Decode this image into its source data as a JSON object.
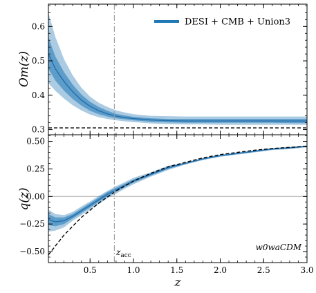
{
  "chart_data": [
    {
      "type": "area",
      "panel": "top",
      "ylabel": "Om(z)",
      "xlim": [
        0.02,
        3.0
      ],
      "ylim": [
        0.285,
        0.665
      ],
      "yticks": [
        0.3,
        0.4,
        0.5,
        0.6
      ],
      "ytick_labels": [
        "0.3",
        "0.4",
        "0.5",
        "0.6"
      ],
      "legend": {
        "label": "DESI + CMB + Union3",
        "placement": "top-right",
        "color": "#1f77b4"
      },
      "series": [
        {
          "name": "DESI + CMB + Union3",
          "x": [
            0.02,
            0.1,
            0.2,
            0.3,
            0.4,
            0.5,
            0.6,
            0.7,
            0.8,
            0.9,
            1.0,
            1.2,
            1.4,
            1.6,
            1.8,
            2.0,
            2.2,
            2.4,
            2.6,
            2.8,
            3.0
          ],
          "median": [
            0.52,
            0.477,
            0.44,
            0.41,
            0.386,
            0.368,
            0.355,
            0.346,
            0.339,
            0.335,
            0.332,
            0.328,
            0.326,
            0.325,
            0.325,
            0.325,
            0.325,
            0.325,
            0.325,
            0.325,
            0.325
          ],
          "band68_low": [
            0.477,
            0.443,
            0.413,
            0.389,
            0.37,
            0.355,
            0.345,
            0.338,
            0.333,
            0.33,
            0.327,
            0.323,
            0.321,
            0.32,
            0.32,
            0.32,
            0.32,
            0.32,
            0.32,
            0.319,
            0.319
          ],
          "band68_high": [
            0.568,
            0.513,
            0.467,
            0.431,
            0.402,
            0.381,
            0.366,
            0.355,
            0.346,
            0.341,
            0.337,
            0.333,
            0.331,
            0.331,
            0.331,
            0.331,
            0.331,
            0.331,
            0.331,
            0.331,
            0.331
          ],
          "band95_low": [
            0.435,
            0.413,
            0.39,
            0.371,
            0.356,
            0.344,
            0.336,
            0.331,
            0.327,
            0.324,
            0.322,
            0.318,
            0.316,
            0.315,
            0.315,
            0.314,
            0.314,
            0.314,
            0.314,
            0.314,
            0.314
          ],
          "band95_high": [
            0.64,
            0.57,
            0.505,
            0.458,
            0.422,
            0.396,
            0.378,
            0.366,
            0.356,
            0.35,
            0.345,
            0.34,
            0.339,
            0.338,
            0.338,
            0.338,
            0.338,
            0.338,
            0.338,
            0.338,
            0.338
          ]
        }
      ],
      "reference": {
        "y": 0.305,
        "style": "dashed",
        "color": "#000000"
      },
      "vline": {
        "x": 0.78,
        "style": "dash-dot",
        "color": "#888888"
      }
    },
    {
      "type": "area",
      "panel": "bottom",
      "xlabel": "z",
      "ylabel": "q(z)",
      "xlim": [
        0.02,
        3.0
      ],
      "ylim": [
        -0.6,
        0.56
      ],
      "xticks": [
        0.5,
        1.0,
        1.5,
        2.0,
        2.5,
        3.0
      ],
      "xtick_labels": [
        "0.5",
        "1.0",
        "1.5",
        "2.0",
        "2.5",
        "3.0"
      ],
      "yticks": [
        -0.5,
        -0.25,
        0.0,
        0.25,
        0.5
      ],
      "ytick_labels": [
        "−0.50",
        "−0.25",
        "0.00",
        "0.25",
        "0.50"
      ],
      "series": [
        {
          "name": "DESI + CMB + Union3",
          "x": [
            0.02,
            0.1,
            0.2,
            0.3,
            0.4,
            0.5,
            0.6,
            0.7,
            0.8,
            0.9,
            1.0,
            1.2,
            1.4,
            1.6,
            1.8,
            2.0,
            2.2,
            2.4,
            2.6,
            2.8,
            3.0
          ],
          "median": [
            -0.21,
            -0.23,
            -0.22,
            -0.18,
            -0.13,
            -0.08,
            -0.03,
            0.02,
            0.06,
            0.1,
            0.14,
            0.2,
            0.26,
            0.3,
            0.34,
            0.37,
            0.39,
            0.41,
            0.43,
            0.44,
            0.455
          ],
          "band68_low": [
            -0.26,
            -0.27,
            -0.25,
            -0.2,
            -0.15,
            -0.1,
            -0.05,
            0.0,
            0.04,
            0.085,
            0.125,
            0.19,
            0.25,
            0.295,
            0.335,
            0.365,
            0.385,
            0.405,
            0.425,
            0.435,
            0.45
          ],
          "band68_high": [
            -0.16,
            -0.19,
            -0.19,
            -0.16,
            -0.11,
            -0.06,
            -0.01,
            0.04,
            0.08,
            0.115,
            0.155,
            0.21,
            0.27,
            0.305,
            0.345,
            0.375,
            0.395,
            0.415,
            0.435,
            0.445,
            0.46
          ],
          "band95_low": [
            -0.32,
            -0.31,
            -0.28,
            -0.22,
            -0.17,
            -0.12,
            -0.07,
            -0.015,
            0.025,
            0.07,
            0.11,
            0.18,
            0.24,
            0.29,
            0.33,
            0.36,
            0.38,
            0.4,
            0.42,
            0.43,
            0.445
          ],
          "band95_high": [
            -0.12,
            -0.16,
            -0.17,
            -0.14,
            -0.09,
            -0.045,
            0.005,
            0.05,
            0.095,
            0.13,
            0.17,
            0.22,
            0.28,
            0.31,
            0.35,
            0.38,
            0.4,
            0.42,
            0.44,
            0.45,
            0.465
          ]
        }
      ],
      "reference_curve": {
        "style": "dashed",
        "color": "#000000",
        "x": [
          0.02,
          0.2,
          0.4,
          0.6,
          0.8,
          1.0,
          1.2,
          1.4,
          1.6,
          1.8,
          2.0,
          2.2,
          2.4,
          2.6,
          2.8,
          3.0
        ],
        "y": [
          -0.53,
          -0.35,
          -0.19,
          -0.06,
          0.05,
          0.14,
          0.21,
          0.27,
          0.31,
          0.35,
          0.38,
          0.4,
          0.42,
          0.435,
          0.445,
          0.455
        ]
      },
      "hline": {
        "y": 0.0,
        "style": "solid",
        "color": "#aaaaaa"
      },
      "vline": {
        "x": 0.78,
        "style": "dash-dot",
        "color": "#888888"
      },
      "annotations": [
        {
          "text_main": "z",
          "text_sub": "acc",
          "near": "vline-bottom"
        },
        {
          "text": "w0waCDM",
          "placement": "bottom-right"
        }
      ]
    }
  ]
}
